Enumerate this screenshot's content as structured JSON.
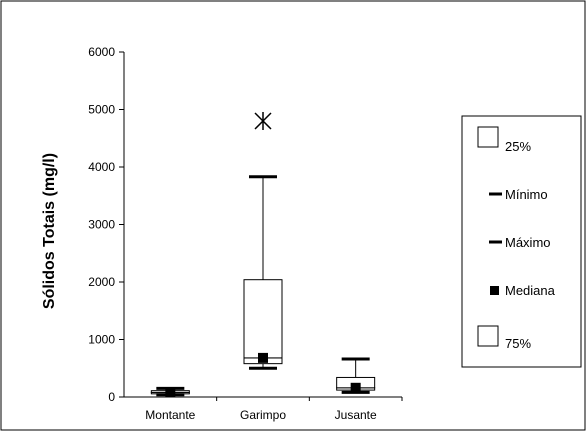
{
  "chart_data": {
    "type": "boxplot",
    "ylabel": "Sólidos Totais (mg/l)",
    "xlabel": "",
    "ylim": [
      0,
      6000
    ],
    "yticks": [
      0,
      1000,
      2000,
      3000,
      4000,
      5000,
      6000
    ],
    "categories": [
      "Montante",
      "Garimpo",
      "Jusante"
    ],
    "boxes": [
      {
        "category": "Montante",
        "min": 40,
        "q1": 55,
        "median": 80,
        "q3": 110,
        "max": 150,
        "outliers": []
      },
      {
        "category": "Garimpo",
        "min": 500,
        "q1": 580,
        "median": 680,
        "q3": 2040,
        "max": 3830,
        "outliers": [
          4800
        ]
      },
      {
        "category": "Jusante",
        "min": 80,
        "q1": 120,
        "median": 160,
        "q3": 340,
        "max": 660,
        "outliers": []
      }
    ],
    "legend": {
      "position": "right",
      "entries": [
        "25%",
        "Mínimo",
        "Máximo",
        "Mediana",
        "75%"
      ]
    },
    "grid": false
  }
}
